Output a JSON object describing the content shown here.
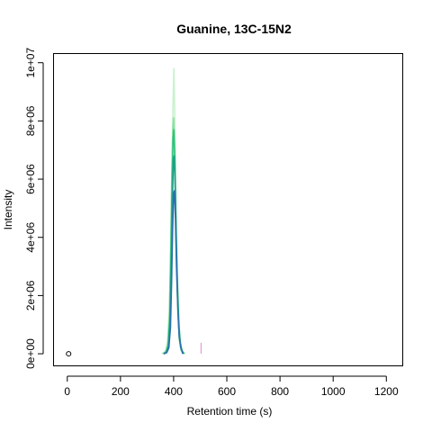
{
  "chart_data": {
    "type": "line",
    "title": "Guanine, 13C-15N2",
    "xlabel": "Retention time (s)",
    "ylabel": "Intensity",
    "xlim": [
      -50,
      1260
    ],
    "ylim": [
      -400000,
      10300000
    ],
    "xticks": [
      0,
      200,
      400,
      600,
      800,
      1000,
      1200
    ],
    "xtick_labels": [
      "0",
      "200",
      "400",
      "600",
      "800",
      "1000",
      "1200"
    ],
    "yticks": [
      0,
      2000000,
      4000000,
      6000000,
      8000000,
      10000000
    ],
    "ytick_labels": [
      "0e+00",
      "2e+06",
      "4e+06",
      "6e+06",
      "8e+06",
      "1e+07"
    ],
    "grid": false,
    "legend": "none",
    "series": [
      {
        "color": "#c9f2cf",
        "x": [
          355,
          365,
          375,
          383,
          388,
          392,
          395,
          398,
          401,
          404,
          408,
          413,
          418,
          423,
          430,
          440
        ],
        "y": [
          0,
          50000,
          200000,
          1000000,
          2800000,
          5200000,
          7200000,
          8600000,
          9800000,
          8400000,
          5800000,
          3200000,
          1600000,
          600000,
          150000,
          0
        ]
      },
      {
        "color": "#8fe0a2",
        "x": [
          360,
          370,
          378,
          384,
          389,
          393,
          397,
          400,
          403,
          407,
          411,
          416,
          421,
          428,
          438
        ],
        "y": [
          0,
          80000,
          400000,
          1500000,
          3800000,
          6200000,
          7800000,
          8100000,
          7200000,
          5000000,
          3000000,
          1400000,
          500000,
          120000,
          0
        ]
      },
      {
        "color": "#2ec27e",
        "x": [
          362,
          372,
          380,
          386,
          390,
          394,
          398,
          401,
          405,
          409,
          414,
          419,
          425,
          432,
          440
        ],
        "y": [
          0,
          60000,
          300000,
          1300000,
          3400000,
          5800000,
          7400000,
          7700000,
          6600000,
          4300000,
          2400000,
          1100000,
          380000,
          90000,
          0
        ]
      },
      {
        "color": "#1f9e89",
        "x": [
          362,
          372,
          380,
          386,
          391,
          395,
          399,
          402,
          406,
          410,
          415,
          420,
          426,
          434
        ],
        "y": [
          0,
          50000,
          250000,
          1100000,
          3000000,
          5200000,
          6600000,
          6800000,
          5700000,
          3700000,
          1900000,
          800000,
          250000,
          0
        ]
      },
      {
        "color": "#2c6fb0",
        "x": [
          364,
          374,
          382,
          388,
          392,
          396,
          400,
          403,
          407,
          411,
          416,
          421,
          428,
          436
        ],
        "y": [
          0,
          40000,
          200000,
          900000,
          2400000,
          4300000,
          5500000,
          5600000,
          4600000,
          2900000,
          1500000,
          600000,
          180000,
          0
        ]
      }
    ],
    "annotations": [
      {
        "type": "spike",
        "x": 503,
        "y": 380000,
        "color": "#d88fd0"
      },
      {
        "type": "open-circle",
        "x": 5,
        "y": 0,
        "color": "#000000"
      }
    ]
  }
}
